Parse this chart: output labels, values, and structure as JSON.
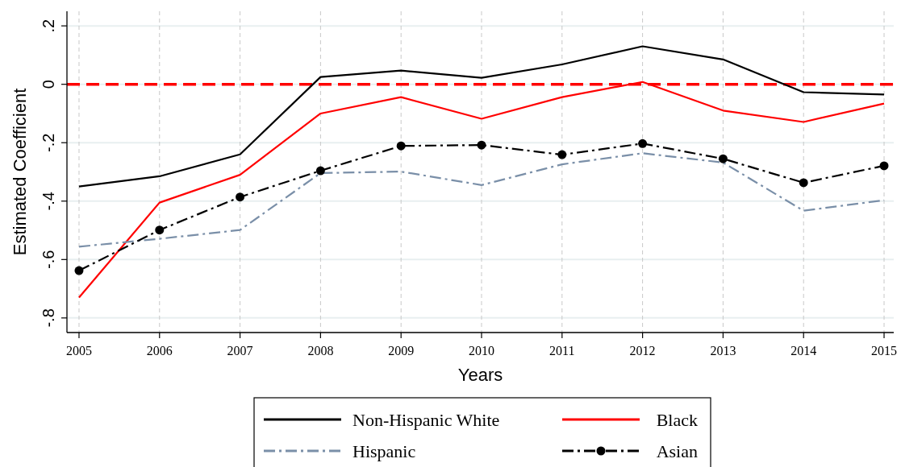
{
  "chart_data": {
    "type": "line",
    "xlabel": "Years",
    "ylabel": "Estimated Coefficient",
    "x": [
      2005,
      2006,
      2007,
      2008,
      2009,
      2010,
      2011,
      2012,
      2013,
      2014,
      2015
    ],
    "xlim": [
      2004.85,
      2015.12
    ],
    "xticks": [
      2005,
      2006,
      2007,
      2008,
      2009,
      2010,
      2011,
      2012,
      2013,
      2014,
      2015
    ],
    "ylim": [
      -0.85,
      0.25
    ],
    "yticks": [
      {
        "value": 0.2,
        "label": ".2"
      },
      {
        "value": 0,
        "label": "0"
      },
      {
        "value": -0.2,
        "label": "-.2"
      },
      {
        "value": -0.4,
        "label": "-.4"
      },
      {
        "value": -0.6,
        "label": "-.6"
      },
      {
        "value": -0.8,
        "label": "-.8"
      }
    ],
    "grid": true,
    "legend": "bottom",
    "ref_lines": [
      {
        "axis": "y",
        "value": 0,
        "color": "#ff0000",
        "line_style": "dashed"
      }
    ],
    "series": [
      {
        "name": "Non-Hispanic White",
        "color": "#000000",
        "line_style": "solid",
        "values": [
          -0.35,
          -0.315,
          -0.24,
          0.025,
          0.047,
          0.022,
          0.068,
          0.13,
          0.085,
          -0.027,
          -0.035
        ]
      },
      {
        "name": "Black",
        "color": "#ff0000",
        "line_style": "solid",
        "values": [
          -0.73,
          -0.405,
          -0.31,
          -0.1,
          -0.044,
          -0.118,
          -0.044,
          0.008,
          -0.09,
          -0.129,
          -0.066
        ]
      },
      {
        "name": "Hispanic",
        "color": "#7a8fa8",
        "line_style": "dashed",
        "values": [
          -0.556,
          -0.529,
          -0.499,
          -0.304,
          -0.299,
          -0.345,
          -0.274,
          -0.236,
          -0.268,
          -0.433,
          -0.397
        ]
      },
      {
        "name": "Asian",
        "color": "#000000",
        "line_style": "dashed",
        "marker": "circle",
        "values": [
          -0.638,
          -0.499,
          -0.386,
          -0.296,
          -0.211,
          -0.208,
          -0.241,
          -0.203,
          -0.255,
          -0.337,
          -0.279
        ]
      }
    ]
  }
}
